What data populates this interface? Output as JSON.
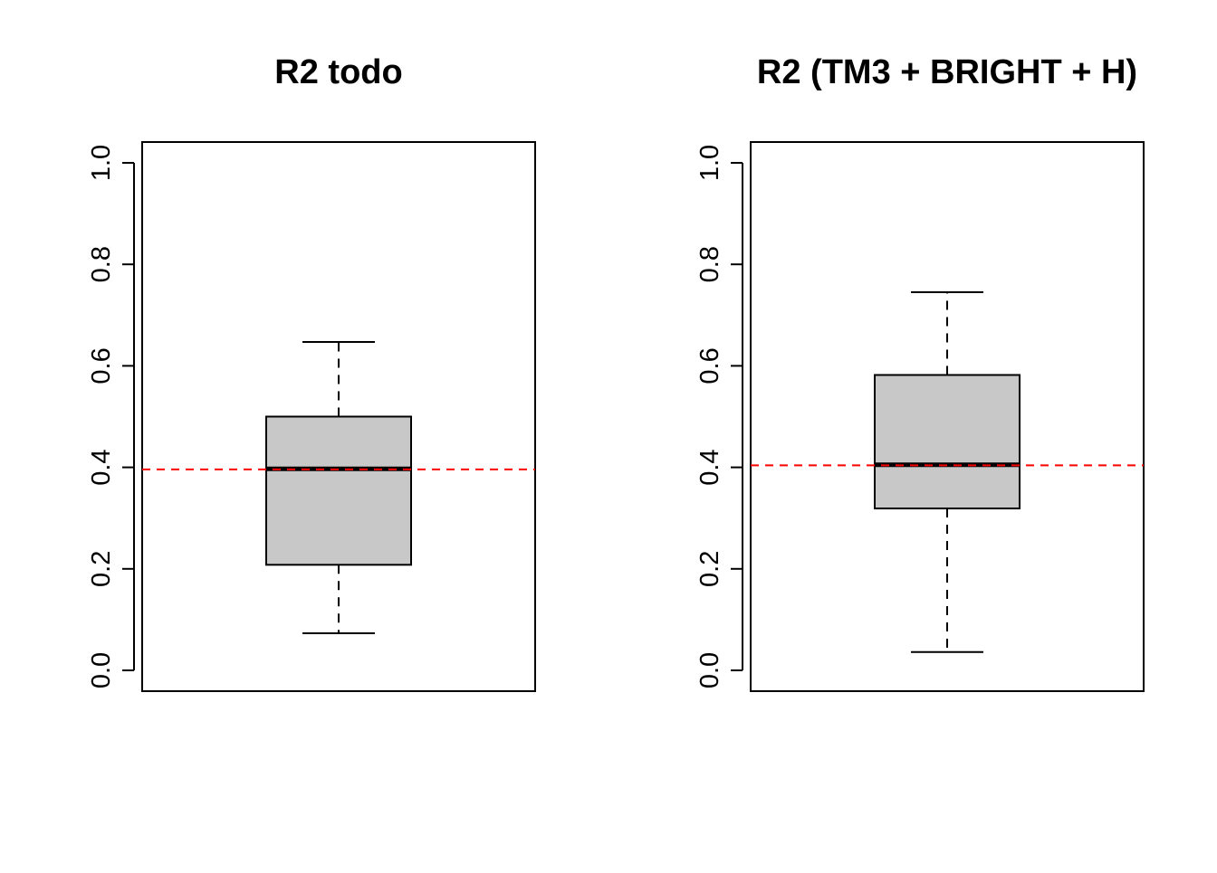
{
  "chart_data": [
    {
      "type": "boxplot",
      "title": "R2 todo",
      "xlabel": "",
      "ylabel": "",
      "ylim": [
        0.0,
        1.0
      ],
      "y_ticks": [
        0.0,
        0.2,
        0.4,
        0.6,
        0.8,
        1.0
      ],
      "y_tick_labels": [
        "0.0",
        "0.2",
        "0.4",
        "0.6",
        "0.8",
        "1.0"
      ],
      "box": {
        "min": 0.073,
        "q1": 0.208,
        "median": 0.397,
        "q3": 0.5,
        "max": 0.647
      },
      "reference_line": {
        "y": 0.396,
        "color": "#ff0000",
        "style": "dashed"
      },
      "box_fill": "#c8c8c8"
    },
    {
      "type": "boxplot",
      "title": "R2 (TM3 + BRIGHT + H)",
      "xlabel": "",
      "ylabel": "",
      "ylim": [
        0.0,
        1.0
      ],
      "y_ticks": [
        0.0,
        0.2,
        0.4,
        0.6,
        0.8,
        1.0
      ],
      "y_tick_labels": [
        "0.0",
        "0.2",
        "0.4",
        "0.6",
        "0.8",
        "1.0"
      ],
      "box": {
        "min": 0.036,
        "q1": 0.319,
        "median": 0.405,
        "q3": 0.582,
        "max": 0.745
      },
      "reference_line": {
        "y": 0.404,
        "color": "#ff0000",
        "style": "dashed"
      },
      "box_fill": "#c8c8c8"
    }
  ]
}
